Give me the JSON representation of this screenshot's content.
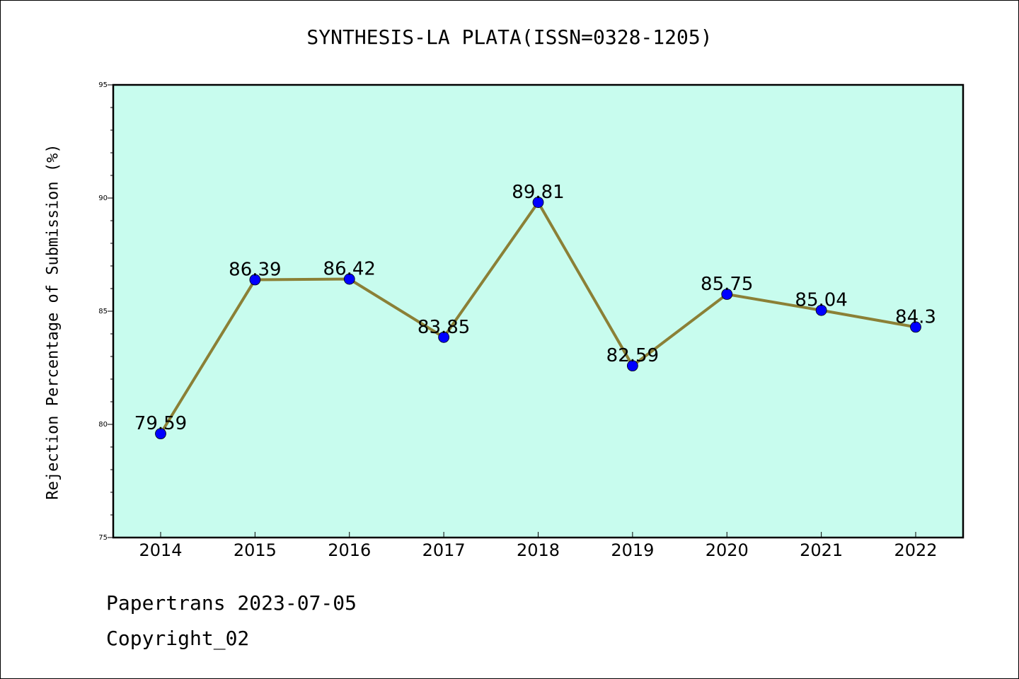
{
  "chart_data": {
    "type": "line",
    "title": "SYNTHESIS-LA PLATA(ISSN=0328-1205)",
    "xlabel": "",
    "ylabel": "Rejection Percentage of Submission (%)",
    "categories": [
      "2014",
      "2015",
      "2016",
      "2017",
      "2018",
      "2019",
      "2020",
      "2021",
      "2022"
    ],
    "values": [
      79.59,
      86.39,
      86.42,
      83.85,
      89.81,
      82.59,
      85.75,
      85.04,
      84.3
    ],
    "data_labels": [
      "79.59",
      "86.39",
      "86.42",
      "83.85",
      "89.81",
      "82.59",
      "85.75",
      "85.04",
      "84.3"
    ],
    "ylim": [
      75,
      95
    ],
    "yticks": [
      75,
      80,
      85,
      90,
      95
    ],
    "grid": false,
    "plot_background": "#c8fcee",
    "line_color": "#8b8036",
    "marker_color": "#0000ff"
  },
  "footer": {
    "line1": "Papertrans 2023-07-05",
    "line2": "Copyright_02"
  }
}
